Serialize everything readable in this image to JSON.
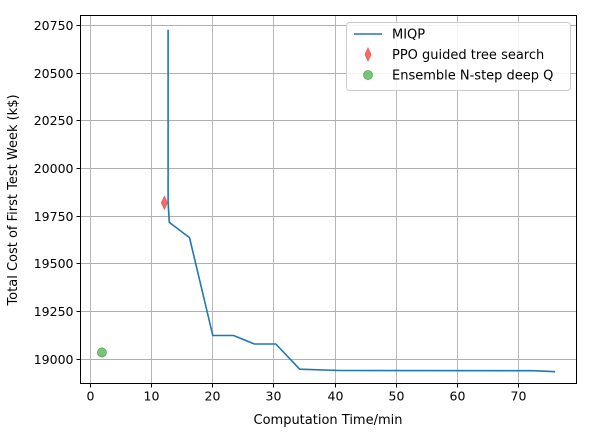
{
  "chart_data": {
    "type": "line",
    "title": "",
    "xlabel": "Computation Time/min",
    "ylabel": "Total Cost of First Test Week (k$)",
    "xlim": [
      -1.5,
      79.5
    ],
    "ylim": [
      18870,
      20800
    ],
    "xticks": [
      0,
      10,
      20,
      30,
      40,
      50,
      60,
      70
    ],
    "yticks": [
      19000,
      19250,
      19500,
      19750,
      20000,
      20250,
      20500,
      20750
    ],
    "grid": true,
    "legend_position": "top-right",
    "series": [
      {
        "name": "MIQP",
        "kind": "line",
        "color": "#1f77b4",
        "x": [
          12.8,
          12.8,
          13.0,
          16.3,
          20.1,
          23.5,
          26.9,
          30.4,
          34.3,
          40.8,
          72.5,
          76.0
        ],
        "y": [
          20725,
          19820,
          19715,
          19635,
          19122,
          19122,
          19077,
          19077,
          18945,
          18938,
          18937,
          18932
        ]
      },
      {
        "name": "PPO guided tree search",
        "kind": "marker",
        "marker": "thin-diamond",
        "color": "#f15a5a",
        "x": [
          12.2
        ],
        "y": [
          19818
        ]
      },
      {
        "name": "Ensemble N-step deep Q",
        "kind": "marker",
        "marker": "circle",
        "color": "#4fae4f",
        "x": [
          2.0
        ],
        "y": [
          19033
        ]
      }
    ]
  }
}
